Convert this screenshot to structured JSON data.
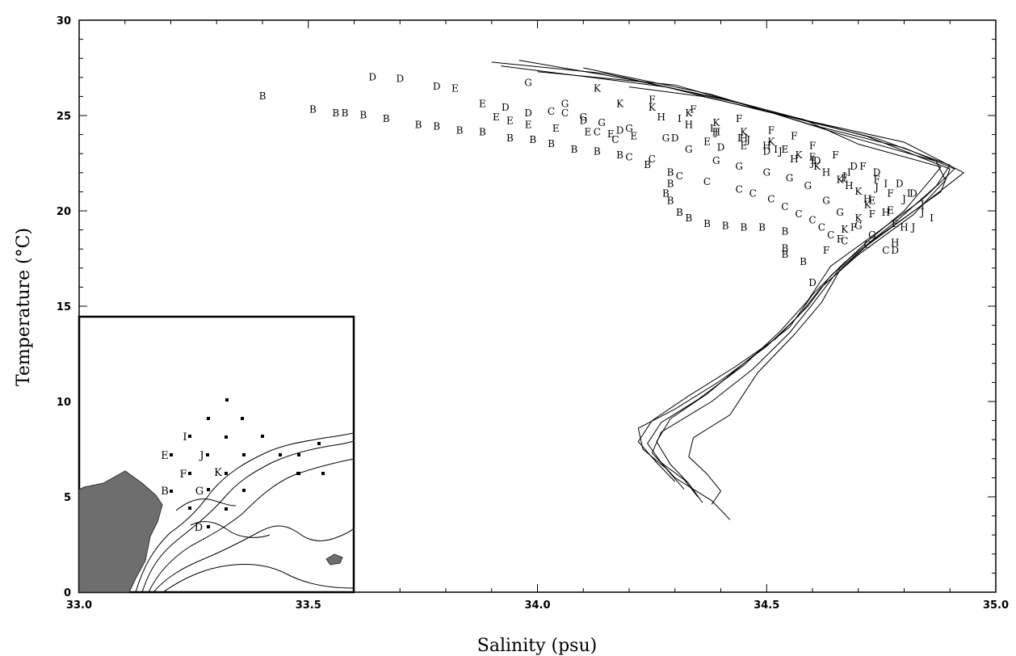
{
  "chart_data": {
    "type": "scatter",
    "xlabel": "Salinity (psu)",
    "ylabel": "Temperature (°C)",
    "xlim": [
      33.0,
      35.0
    ],
    "ylim": [
      0,
      30
    ],
    "x_ticks": [
      33.0,
      33.5,
      34.0,
      34.5,
      35.0
    ],
    "x_tick_labels": [
      "33.0",
      "33.5",
      "34.0",
      "34.5",
      "35.0"
    ],
    "y_ticks": [
      0,
      5,
      10,
      15,
      20,
      25,
      30
    ],
    "y_tick_labels": [
      "0",
      "5",
      "10",
      "15",
      "20",
      "25",
      "30"
    ],
    "grid": false,
    "series": [
      {
        "name": "B",
        "points": [
          [
            33.4,
            26.0
          ],
          [
            33.51,
            25.3
          ],
          [
            33.56,
            25.1
          ],
          [
            33.58,
            25.1
          ],
          [
            33.62,
            25.0
          ],
          [
            33.67,
            24.8
          ],
          [
            33.74,
            24.5
          ],
          [
            33.78,
            24.4
          ],
          [
            33.83,
            24.2
          ],
          [
            33.88,
            24.1
          ],
          [
            33.94,
            23.8
          ],
          [
            33.99,
            23.7
          ],
          [
            34.03,
            23.5
          ],
          [
            34.08,
            23.2
          ],
          [
            34.13,
            23.1
          ],
          [
            34.18,
            22.9
          ],
          [
            34.24,
            22.4
          ],
          [
            34.29,
            22.0
          ],
          [
            34.29,
            21.4
          ],
          [
            34.28,
            20.9
          ],
          [
            34.29,
            20.5
          ],
          [
            34.31,
            19.9
          ],
          [
            34.33,
            19.6
          ],
          [
            34.37,
            19.3
          ],
          [
            34.41,
            19.2
          ],
          [
            34.45,
            19.1
          ],
          [
            34.49,
            19.1
          ],
          [
            34.54,
            18.9
          ],
          [
            34.54,
            18.0
          ],
          [
            34.54,
            17.7
          ],
          [
            34.58,
            17.3
          ]
        ]
      },
      {
        "name": "C",
        "points": [
          [
            34.03,
            25.2
          ],
          [
            34.06,
            25.1
          ],
          [
            34.13,
            24.1
          ],
          [
            34.17,
            23.7
          ],
          [
            34.2,
            22.8
          ],
          [
            34.25,
            22.7
          ],
          [
            34.31,
            21.8
          ],
          [
            34.37,
            21.5
          ],
          [
            34.44,
            21.1
          ],
          [
            34.47,
            20.9
          ],
          [
            34.51,
            20.6
          ],
          [
            34.54,
            20.2
          ],
          [
            34.57,
            19.8
          ],
          [
            34.6,
            19.5
          ],
          [
            34.62,
            19.1
          ],
          [
            34.64,
            18.7
          ],
          [
            34.67,
            18.4
          ],
          [
            34.72,
            18.2
          ],
          [
            34.76,
            17.9
          ]
        ]
      },
      {
        "name": "D",
        "points": [
          [
            33.64,
            27.0
          ],
          [
            33.7,
            26.9
          ],
          [
            33.78,
            26.5
          ],
          [
            33.93,
            25.4
          ],
          [
            33.98,
            25.1
          ],
          [
            34.1,
            24.7
          ],
          [
            34.18,
            24.2
          ],
          [
            34.3,
            23.8
          ],
          [
            34.4,
            23.3
          ],
          [
            34.5,
            23.1
          ],
          [
            34.61,
            22.6
          ],
          [
            34.69,
            22.3
          ],
          [
            34.74,
            22.0
          ],
          [
            34.79,
            21.4
          ],
          [
            34.82,
            20.9
          ],
          [
            34.78,
            17.9
          ],
          [
            34.6,
            16.2
          ]
        ]
      },
      {
        "name": "E",
        "points": [
          [
            33.82,
            26.4
          ],
          [
            33.88,
            25.6
          ],
          [
            33.91,
            24.9
          ],
          [
            33.94,
            24.7
          ],
          [
            33.98,
            24.5
          ],
          [
            34.04,
            24.3
          ],
          [
            34.11,
            24.1
          ],
          [
            34.16,
            24.0
          ],
          [
            34.21,
            23.9
          ],
          [
            34.37,
            23.6
          ],
          [
            34.45,
            23.4
          ],
          [
            34.54,
            23.2
          ],
          [
            34.6,
            22.8
          ],
          [
            34.67,
            21.7
          ],
          [
            34.73,
            20.5
          ],
          [
            34.77,
            20.0
          ],
          [
            34.78,
            19.3
          ]
        ]
      },
      {
        "name": "F",
        "points": [
          [
            34.25,
            25.8
          ],
          [
            34.34,
            25.3
          ],
          [
            34.44,
            24.8
          ],
          [
            34.51,
            24.2
          ],
          [
            34.56,
            23.9
          ],
          [
            34.6,
            23.4
          ],
          [
            34.65,
            22.9
          ],
          [
            34.71,
            22.3
          ],
          [
            34.74,
            21.6
          ],
          [
            34.77,
            20.9
          ],
          [
            34.73,
            19.8
          ],
          [
            34.69,
            19.1
          ],
          [
            34.66,
            18.5
          ],
          [
            34.63,
            17.9
          ]
        ]
      },
      {
        "name": "G",
        "points": [
          [
            33.98,
            26.7
          ],
          [
            34.06,
            25.6
          ],
          [
            34.1,
            24.9
          ],
          [
            34.14,
            24.6
          ],
          [
            34.2,
            24.3
          ],
          [
            34.28,
            23.8
          ],
          [
            34.33,
            23.2
          ],
          [
            34.39,
            22.6
          ],
          [
            34.44,
            22.3
          ],
          [
            34.5,
            22.0
          ],
          [
            34.55,
            21.7
          ],
          [
            34.59,
            21.3
          ],
          [
            34.63,
            20.5
          ],
          [
            34.66,
            19.9
          ],
          [
            34.7,
            19.2
          ],
          [
            34.73,
            18.7
          ]
        ]
      },
      {
        "name": "H",
        "points": [
          [
            34.27,
            24.9
          ],
          [
            34.33,
            24.5
          ],
          [
            34.39,
            24.1
          ],
          [
            34.45,
            23.8
          ],
          [
            34.5,
            23.4
          ],
          [
            34.56,
            22.7
          ],
          [
            34.63,
            22.0
          ],
          [
            34.68,
            21.3
          ],
          [
            34.72,
            20.6
          ],
          [
            34.76,
            19.9
          ],
          [
            34.8,
            19.1
          ],
          [
            34.78,
            18.3
          ]
        ]
      },
      {
        "name": "I",
        "points": [
          [
            34.31,
            24.8
          ],
          [
            34.38,
            24.3
          ],
          [
            34.44,
            23.8
          ],
          [
            34.52,
            23.2
          ],
          [
            34.6,
            22.6
          ],
          [
            34.68,
            22.0
          ],
          [
            34.76,
            21.4
          ],
          [
            34.81,
            20.9
          ],
          [
            34.84,
            20.3
          ],
          [
            34.86,
            19.6
          ]
        ]
      },
      {
        "name": "J",
        "points": [
          [
            34.39,
            24.1
          ],
          [
            34.46,
            23.7
          ],
          [
            34.53,
            23.1
          ],
          [
            34.6,
            22.5
          ],
          [
            34.67,
            21.8
          ],
          [
            34.74,
            21.2
          ],
          [
            34.8,
            20.6
          ],
          [
            34.84,
            19.9
          ],
          [
            34.82,
            19.1
          ]
        ]
      },
      {
        "name": "K",
        "points": [
          [
            34.13,
            26.4
          ],
          [
            34.18,
            25.6
          ],
          [
            34.25,
            25.4
          ],
          [
            34.33,
            25.1
          ],
          [
            34.39,
            24.6
          ],
          [
            34.45,
            24.1
          ],
          [
            34.51,
            23.6
          ],
          [
            34.57,
            22.9
          ],
          [
            34.61,
            22.3
          ],
          [
            34.66,
            21.6
          ],
          [
            34.7,
            21.0
          ],
          [
            34.72,
            20.3
          ],
          [
            34.7,
            19.6
          ],
          [
            34.67,
            19.0
          ]
        ]
      }
    ],
    "profiles": [
      [
        [
          34.38,
          4.6
        ],
        [
          34.4,
          5.3
        ],
        [
          34.37,
          6.2
        ],
        [
          34.33,
          7.1
        ],
        [
          34.34,
          8.1
        ],
        [
          34.42,
          9.3
        ],
        [
          34.48,
          11.5
        ],
        [
          34.56,
          13.5
        ],
        [
          34.62,
          15.2
        ],
        [
          34.66,
          16.9
        ],
        [
          34.72,
          18.2
        ],
        [
          34.85,
          20.5
        ],
        [
          34.93,
          22.0
        ],
        [
          34.8,
          23.6
        ],
        [
          34.5,
          25.2
        ],
        [
          34.28,
          26.5
        ],
        [
          33.92,
          27.6
        ]
      ],
      [
        [
          34.42,
          3.8
        ],
        [
          34.38,
          4.8
        ],
        [
          34.3,
          6.0
        ],
        [
          34.25,
          7.3
        ],
        [
          34.27,
          8.4
        ],
        [
          34.38,
          10.0
        ],
        [
          34.47,
          11.7
        ],
        [
          34.55,
          13.6
        ],
        [
          34.6,
          15.1
        ],
        [
          34.66,
          17.0
        ],
        [
          34.74,
          18.6
        ],
        [
          34.88,
          21.0
        ],
        [
          34.9,
          22.2
        ],
        [
          34.72,
          23.9
        ],
        [
          34.42,
          25.8
        ],
        [
          34.2,
          26.9
        ],
        [
          33.96,
          27.9
        ]
      ],
      [
        [
          34.35,
          5.0
        ],
        [
          34.32,
          5.9
        ],
        [
          34.27,
          6.8
        ],
        [
          34.24,
          7.8
        ],
        [
          34.27,
          8.9
        ],
        [
          34.35,
          10.1
        ],
        [
          34.45,
          11.9
        ],
        [
          34.53,
          13.7
        ],
        [
          34.59,
          15.3
        ],
        [
          34.64,
          17.1
        ],
        [
          34.76,
          19.2
        ],
        [
          34.84,
          20.6
        ],
        [
          34.91,
          22.2
        ],
        [
          34.8,
          23.3
        ],
        [
          34.6,
          24.5
        ],
        [
          34.38,
          26.1
        ],
        [
          34.1,
          27.5
        ]
      ],
      [
        [
          34.32,
          5.4
        ],
        [
          34.28,
          6.5
        ],
        [
          34.23,
          7.5
        ],
        [
          34.22,
          8.6
        ],
        [
          34.3,
          9.6
        ],
        [
          34.4,
          11.1
        ],
        [
          34.5,
          12.9
        ],
        [
          34.57,
          14.5
        ],
        [
          34.62,
          16.0
        ],
        [
          34.7,
          17.7
        ],
        [
          34.82,
          19.8
        ],
        [
          34.89,
          21.6
        ],
        [
          34.87,
          22.6
        ],
        [
          34.65,
          24.1
        ],
        [
          34.45,
          25.6
        ],
        [
          34.15,
          27.2
        ],
        [
          33.9,
          27.8
        ]
      ],
      [
        [
          34.36,
          4.7
        ],
        [
          34.33,
          5.7
        ],
        [
          34.29,
          6.7
        ],
        [
          34.26,
          7.9
        ],
        [
          34.29,
          9.1
        ],
        [
          34.37,
          10.4
        ],
        [
          34.46,
          12.2
        ],
        [
          34.55,
          13.9
        ],
        [
          34.6,
          15.6
        ],
        [
          34.67,
          17.3
        ],
        [
          34.79,
          19.6
        ],
        [
          34.87,
          21.3
        ],
        [
          34.9,
          22.4
        ],
        [
          34.74,
          23.8
        ],
        [
          34.52,
          25.1
        ],
        [
          34.3,
          26.6
        ],
        [
          34.0,
          27.3
        ]
      ],
      [
        [
          34.3,
          5.8
        ],
        [
          34.26,
          6.8
        ],
        [
          34.22,
          7.9
        ],
        [
          34.25,
          9.0
        ],
        [
          34.33,
          10.3
        ],
        [
          34.43,
          11.8
        ],
        [
          34.52,
          13.3
        ],
        [
          34.59,
          15.0
        ],
        [
          34.64,
          16.6
        ],
        [
          34.72,
          18.4
        ],
        [
          34.8,
          20.0
        ],
        [
          34.86,
          21.7
        ],
        [
          34.88,
          22.3
        ],
        [
          34.7,
          23.5
        ],
        [
          34.58,
          24.8
        ],
        [
          34.36,
          26.0
        ],
        [
          34.2,
          26.5
        ]
      ]
    ],
    "inset_map": {
      "labels": [
        "I",
        "E",
        "J",
        "F",
        "K",
        "B",
        "G",
        "D"
      ]
    }
  }
}
